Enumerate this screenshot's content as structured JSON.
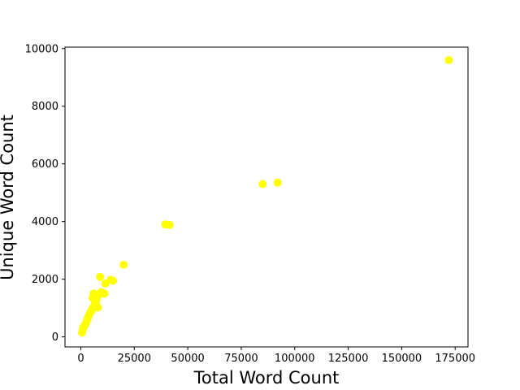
{
  "chart_data": {
    "type": "scatter",
    "title": "",
    "xlabel": "Total Word Count",
    "ylabel": "Unique Word Count",
    "xlim": [
      -7400,
      181000
    ],
    "ylim": [
      -350,
      10050
    ],
    "xticks": [
      0,
      25000,
      50000,
      75000,
      100000,
      125000,
      150000,
      175000
    ],
    "xtick_labels": [
      "0",
      "25000",
      "50000",
      "75000",
      "100000",
      "125000",
      "150000",
      "175000"
    ],
    "yticks": [
      0,
      2000,
      4000,
      6000,
      8000,
      10000
    ],
    "ytick_labels": [
      "0",
      "2000",
      "4000",
      "6000",
      "8000",
      "10000"
    ],
    "grid": false,
    "legend": false,
    "point_color": "#ffff00",
    "series": [
      {
        "x": [
          172000,
          92000,
          85000,
          41500,
          39500,
          20000,
          15000,
          14000,
          11500,
          11000,
          9500,
          9000,
          8500,
          8000,
          7500,
          7200,
          6500,
          6000,
          5500,
          5500,
          5000,
          4500,
          4000,
          3500,
          3000,
          2500,
          2000,
          1500,
          1000,
          800,
          600
        ],
        "y": [
          9600,
          5350,
          5300,
          3880,
          3900,
          2500,
          1950,
          1980,
          1850,
          1500,
          1550,
          2080,
          1480,
          1020,
          1350,
          1250,
          1200,
          1500,
          1000,
          1350,
          900,
          850,
          780,
          700,
          600,
          500,
          420,
          380,
          300,
          200,
          150
        ]
      }
    ]
  }
}
